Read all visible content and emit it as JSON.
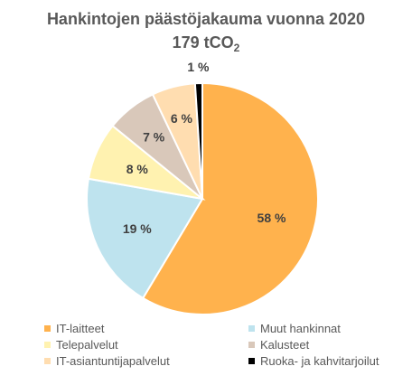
{
  "chart_data": {
    "type": "pie",
    "title": "Hankintojen päästöjakauma vuonna 2020",
    "subtitle_main": "179 tCO",
    "subtitle_sub": "2",
    "legend_position": "bottom",
    "slices": [
      {
        "name": "IT-laitteet",
        "value": 58,
        "label": "58 %",
        "color": "#FFB24D"
      },
      {
        "name": "Muut hankinnat",
        "value": 19,
        "label": "19 %",
        "color": "#BEE3EE"
      },
      {
        "name": "Telepalvelut",
        "value": 8,
        "label": "8 %",
        "color": "#FFF2B0"
      },
      {
        "name": "Kalusteet",
        "value": 7,
        "label": "7 %",
        "color": "#D9C8BA"
      },
      {
        "name": "IT-asiantuntijapalvelut",
        "value": 6,
        "label": "6 %",
        "color": "#FFDDB0"
      },
      {
        "name": "Ruoka- ja kahvitarjoilut",
        "value": 1,
        "label": "1 %",
        "color": "#000000"
      }
    ]
  }
}
